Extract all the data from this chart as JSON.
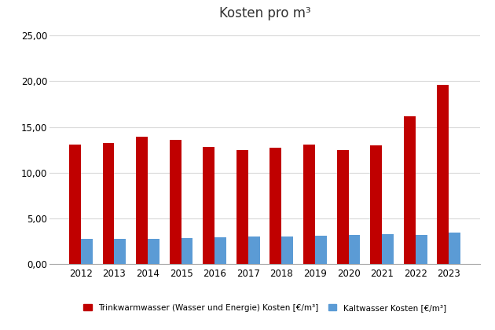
{
  "title": "Kosten pro m³",
  "years": [
    2012,
    2013,
    2014,
    2015,
    2016,
    2017,
    2018,
    2019,
    2020,
    2021,
    2022,
    2023
  ],
  "trinkwarm": [
    13.05,
    13.2,
    13.95,
    13.55,
    12.8,
    12.45,
    12.7,
    13.1,
    12.5,
    13.0,
    16.2,
    19.6
  ],
  "kaltwasser": [
    2.72,
    2.72,
    2.78,
    2.85,
    2.95,
    2.98,
    3.02,
    3.08,
    3.2,
    3.3,
    3.2,
    3.4
  ],
  "trink_color": "#c00000",
  "kalt_color": "#5b9bd5",
  "legend_trink": "Trinkwarmwasser (Wasser und Energie) Kosten [€/m³]",
  "legend_kalt": "Kaltwasser Kosten [€/m³]",
  "ylim": [
    0,
    26
  ],
  "yticks": [
    0,
    5,
    10,
    15,
    20,
    25
  ],
  "ytick_labels": [
    "0,00",
    "5,00",
    "10,00",
    "15,00",
    "20,00",
    "25,00"
  ],
  "background_color": "#ffffff",
  "grid_color": "#d9d9d9",
  "bar_width": 0.35
}
